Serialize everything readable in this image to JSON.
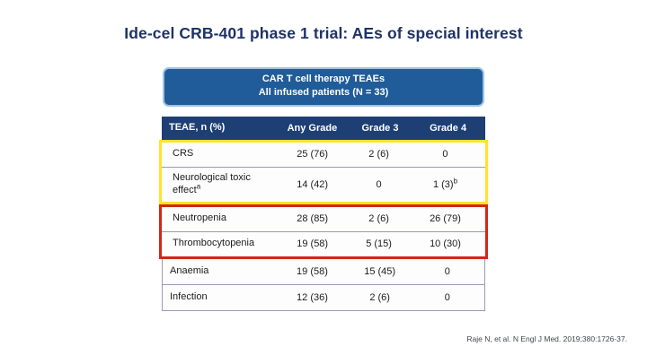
{
  "slide": {
    "title": "Ide-cel CRB-401 phase 1 trial: AEs of special interest",
    "citation": "Raje N, et al. N Engl J Med. 2019;380:1726-37."
  },
  "header_box": {
    "line1": "CAR T cell therapy TEAEs",
    "line2": "All infused patients (N = 33)"
  },
  "table": {
    "columns": {
      "teae": "TEAE, n (%)",
      "any_grade": "Any Grade",
      "grade3": "Grade 3",
      "grade4": "Grade 4"
    },
    "rows": [
      {
        "label": "CRS",
        "label_sup": "",
        "any_grade": "25 (76)",
        "grade3": "2 (6)",
        "grade4": "0",
        "grade4_sup": "",
        "highlight": "yellow"
      },
      {
        "label": "Neurological toxic effect",
        "label_sup": "a",
        "any_grade": "14 (42)",
        "grade3": "0",
        "grade4": "1 (3)",
        "grade4_sup": "b",
        "highlight": "yellow"
      },
      {
        "label": "Neutropenia",
        "label_sup": "",
        "any_grade": "28 (85)",
        "grade3": "2 (6)",
        "grade4": "26 (79)",
        "grade4_sup": "",
        "highlight": "red"
      },
      {
        "label": "Thrombocytopenia",
        "label_sup": "",
        "any_grade": "19 (58)",
        "grade3": "5 (15)",
        "grade4": "10 (30)",
        "grade4_sup": "",
        "highlight": "red"
      },
      {
        "label": "Anaemia",
        "label_sup": "",
        "any_grade": "19 (58)",
        "grade3": "15 (45)",
        "grade4": "0",
        "grade4_sup": "",
        "highlight": "none"
      },
      {
        "label": "Infection",
        "label_sup": "",
        "any_grade": "12 (36)",
        "grade3": "2 (6)",
        "grade4": "0",
        "grade4_sup": "",
        "highlight": "none"
      }
    ]
  },
  "chart_data": {
    "type": "table",
    "title": "CAR T cell therapy TEAEs - All infused patients (N = 33)",
    "columns": [
      "TEAE, n (%)",
      "Any Grade",
      "Grade 3",
      "Grade 4"
    ],
    "rows": [
      [
        "CRS",
        "25 (76)",
        "2 (6)",
        "0"
      ],
      [
        "Neurological toxic effect(a)",
        "14 (42)",
        "0",
        "1 (3)(b)"
      ],
      [
        "Neutropenia",
        "28 (85)",
        "2 (6)",
        "26 (79)"
      ],
      [
        "Thrombocytopenia",
        "19 (58)",
        "5 (15)",
        "10 (30)"
      ],
      [
        "Anaemia",
        "19 (58)",
        "15 (45)",
        "0"
      ],
      [
        "Infection",
        "12 (36)",
        "2 (6)",
        "0"
      ]
    ],
    "annotations": [
      "yellow box highlights CRS and Neurological toxic effect rows",
      "red box highlights Neutropenia and Thrombocytopenia rows"
    ]
  },
  "colors": {
    "title_navy": "#1f3366",
    "box_blue": "#1f5c99",
    "box_border": "#9dc3e6",
    "thead_navy": "#1e3f74",
    "grid_line": "#9a9ab8",
    "hl_yellow": "#fde428",
    "hl_red": "#d22617"
  }
}
